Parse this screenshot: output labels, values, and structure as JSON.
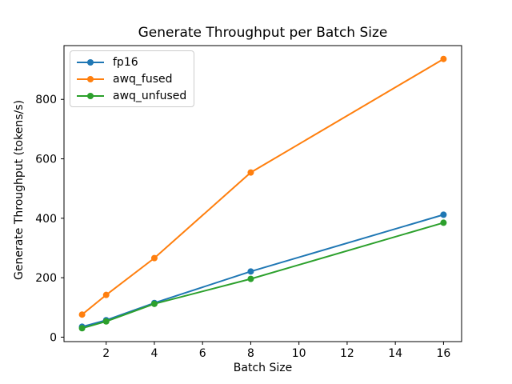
{
  "chart_data": {
    "type": "line",
    "title": "Generate Throughput per Batch Size",
    "xlabel": "Batch Size",
    "ylabel": "Generate Throughput (tokens/s)",
    "x": [
      1,
      2,
      4,
      8,
      16
    ],
    "series": [
      {
        "name": "fp16",
        "color": "#1f77b4",
        "values": [
          35,
          57,
          115,
          221,
          412
        ]
      },
      {
        "name": "awq_fused",
        "color": "#ff7f0e",
        "values": [
          76,
          142,
          266,
          554,
          936
        ]
      },
      {
        "name": "awq_unfused",
        "color": "#2ca02c",
        "values": [
          30,
          53,
          112,
          196,
          385
        ]
      }
    ],
    "xticks": [
      2,
      4,
      6,
      8,
      10,
      12,
      14,
      16
    ],
    "yticks": [
      0,
      200,
      400,
      600,
      800
    ],
    "xlim": [
      0.25,
      16.75
    ],
    "ylim": [
      -15,
      981
    ],
    "grid": false,
    "marker": "o",
    "legend_position": "upper left",
    "axis_color": "#000000",
    "background_color": "#ffffff"
  }
}
